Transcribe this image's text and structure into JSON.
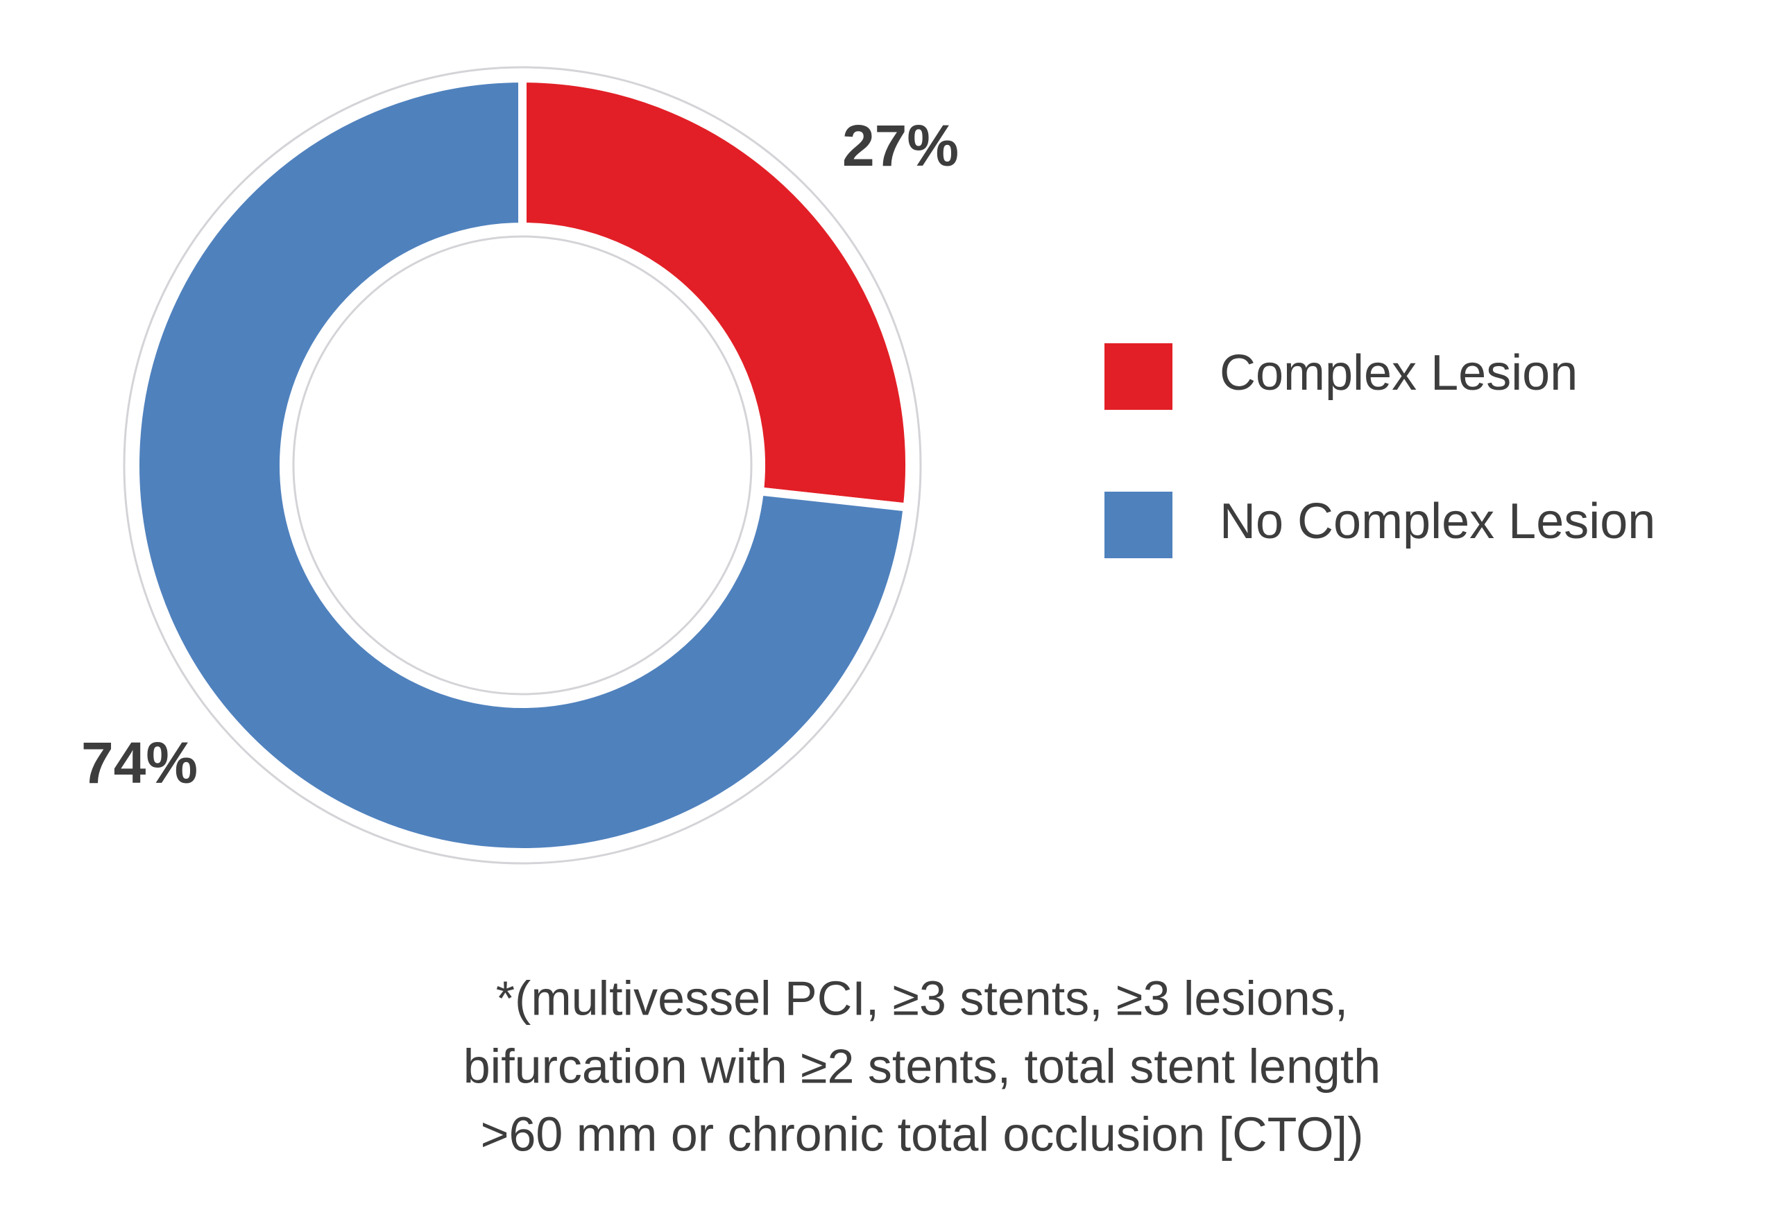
{
  "chart_data": {
    "type": "donut",
    "categories": [
      "Complex Lesion",
      "No Complex Lesion"
    ],
    "values": [
      27,
      74
    ],
    "value_labels": [
      "27%",
      "74%"
    ],
    "colors": [
      "#e21f26",
      "#4f81bd"
    ],
    "legend": "right",
    "footnote": [
      "*(multivessel PCI, ≥3 stents, ≥3 lesions,",
      "bifurcation with ≥2 stents, total stent length",
      ">60 mm or chronic total occlusion [CTO])"
    ]
  }
}
